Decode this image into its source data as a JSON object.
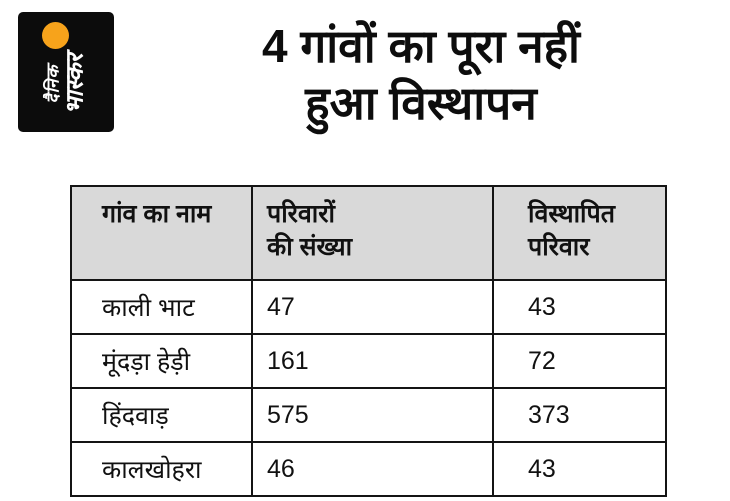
{
  "brand": {
    "logo_line1": "दैनिक",
    "logo_line2": "भास्कर",
    "accent_color": "#f7a31b",
    "logo_bg": "#0c0c0c"
  },
  "title": {
    "line1": "4 गांवों का पूरा नहीं",
    "line2": "हुआ विस्थापन"
  },
  "table": {
    "header_bg": "#d9d9d9",
    "headers": [
      "गांव का नाम",
      "परिवारों\nकी संख्या",
      "विस्थापित\nपरिवार"
    ],
    "rows": [
      [
        "काली भाट",
        "47",
        "43"
      ],
      [
        "मूंदड़ा हेड़ी",
        "161",
        "72"
      ],
      [
        "हिंदवाड़",
        "575",
        "373"
      ],
      [
        "कालखोहरा",
        "46",
        "43"
      ]
    ]
  },
  "chart_data": {
    "type": "table",
    "title": "4 गांवों का पूरा नहीं हुआ विस्थापन",
    "columns": [
      "गांव का नाम",
      "परिवारों की संख्या",
      "विस्थापित परिवार"
    ],
    "rows": [
      [
        "काली भाट",
        47,
        43
      ],
      [
        "मूंदड़ा हेड़ी",
        161,
        72
      ],
      [
        "हिंदवाड़",
        575,
        373
      ],
      [
        "कालखोहरा",
        46,
        43
      ]
    ]
  }
}
